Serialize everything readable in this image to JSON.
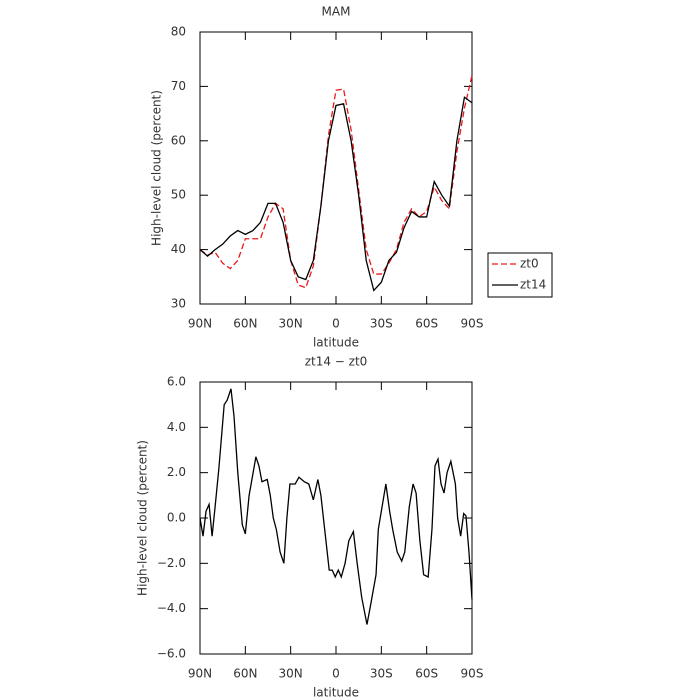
{
  "chart_data": [
    {
      "type": "line",
      "title": "MAM",
      "x_label": "latitude",
      "y_label": "High-level cloud (percent)",
      "x": [
        90,
        85,
        80,
        75,
        70,
        65,
        60,
        55,
        50,
        45,
        40,
        35,
        30,
        25,
        20,
        15,
        10,
        5,
        0,
        -5,
        -10,
        -15,
        -20,
        -25,
        -30,
        -35,
        -40,
        -45,
        -50,
        -55,
        -60,
        -65,
        -70,
        -75,
        -80,
        -85,
        -90
      ],
      "series": [
        {
          "name": "zt0",
          "color": "#e8191c",
          "style": "dashed",
          "values": [
            40,
            39,
            39.5,
            37.5,
            36.5,
            38,
            42,
            42,
            42,
            46,
            48.5,
            47.5,
            38,
            33.5,
            33,
            37,
            48,
            61,
            69.3,
            69.5,
            62,
            51,
            40,
            35.5,
            35.5,
            37.5,
            40,
            45,
            47.5,
            46,
            47,
            51.5,
            49,
            47.5,
            58,
            66,
            72
          ]
        },
        {
          "name": "zt14",
          "color": "#000000",
          "style": "solid",
          "values": [
            40,
            38.8,
            40,
            41,
            42.5,
            43.5,
            42.8,
            43.5,
            45,
            48.5,
            48.5,
            45,
            38,
            35,
            34.5,
            38,
            48,
            60,
            66.5,
            66.8,
            60,
            50,
            38,
            32.5,
            34,
            38,
            39.5,
            44,
            47,
            46,
            46,
            52.5,
            50,
            48,
            60,
            68,
            67
          ]
        }
      ],
      "xlim": [
        90,
        -90
      ],
      "xticks": [
        {
          "value": 90,
          "label": "90N"
        },
        {
          "value": 60,
          "label": "60N"
        },
        {
          "value": 30,
          "label": "30N"
        },
        0,
        {
          "value": -30,
          "label": "30S"
        },
        {
          "value": -60,
          "label": "60S"
        },
        {
          "value": -90,
          "label": "90S"
        }
      ],
      "ylim": [
        30,
        80
      ],
      "yticks": [
        30,
        40,
        50,
        60,
        70,
        80
      ],
      "legend": "right"
    },
    {
      "type": "line",
      "title": "zt14 − zt0",
      "x_label": "latitude",
      "y_label": "High-level cloud (percent)",
      "color": "#000000",
      "x": [
        90,
        88,
        86,
        84,
        82,
        80,
        77.5,
        74,
        72,
        69.5,
        67.5,
        65,
        62,
        60,
        57.5,
        53,
        51,
        49,
        45.5,
        43.5,
        41.5,
        39.5,
        37,
        34.5,
        32.5,
        30.5,
        27,
        24.5,
        21,
        18,
        15,
        12,
        10,
        7.5,
        4.5,
        2.5,
        0.5,
        -1.5,
        -3.5,
        -6,
        -8.5,
        -11.5,
        -14,
        -17,
        -20.5,
        -23,
        -26.5,
        -28,
        -30.5,
        -33,
        -35.5,
        -37.5,
        -40.5,
        -43.5,
        -45.5,
        -48.5,
        -51,
        -53,
        -55.5,
        -58,
        -61,
        -63.5,
        -65.5,
        -67.5,
        -69.5,
        -71.5,
        -73.5,
        -76,
        -79,
        -80.5,
        -82.5,
        -84.5,
        -86,
        -88,
        -90
      ],
      "values": [
        0,
        -0.8,
        0.3,
        0.6,
        -0.8,
        0.5,
        2.2,
        5,
        5.2,
        5.7,
        4.5,
        2,
        -0.3,
        -0.7,
        1,
        2.7,
        2.3,
        1.6,
        1.7,
        1,
        0,
        -0.5,
        -1.5,
        -2,
        0,
        1.5,
        1.5,
        1.8,
        1.6,
        1.5,
        0.8,
        1.7,
        1,
        -0.5,
        -2.3,
        -2.3,
        -2.6,
        -2.3,
        -2.6,
        -2,
        -1,
        -0.6,
        -2,
        -3.5,
        -4.7,
        -3.8,
        -2.5,
        -0.5,
        0.5,
        1.5,
        0.3,
        -0.5,
        -1.5,
        -1.9,
        -1.5,
        0.5,
        1.5,
        1.1,
        -1,
        -2.5,
        -2.6,
        -0.5,
        2.3,
        2.6,
        1.5,
        1.1,
        2,
        2.5,
        1.5,
        0,
        -0.8,
        0.2,
        0.1,
        -1.5,
        -3.6
      ],
      "xlim": [
        90,
        -90
      ],
      "xticks": [
        {
          "value": 90,
          "label": "90N"
        },
        {
          "value": 60,
          "label": "60N"
        },
        {
          "value": 30,
          "label": "30N"
        },
        0,
        {
          "value": -30,
          "label": "30S"
        },
        {
          "value": -60,
          "label": "60S"
        },
        {
          "value": -90,
          "label": "90S"
        }
      ],
      "ylim": [
        -6,
        6
      ],
      "yticks": [
        {
          "value": -6,
          "label": "−6.0"
        },
        {
          "value": -4,
          "label": "−4.0"
        },
        {
          "value": -2,
          "label": "−2.0"
        },
        {
          "value": 0,
          "label": "0.0"
        },
        {
          "value": 2,
          "label": "2.0"
        },
        {
          "value": 4,
          "label": "4.0"
        },
        {
          "value": 6,
          "label": "6.0"
        }
      ]
    }
  ]
}
